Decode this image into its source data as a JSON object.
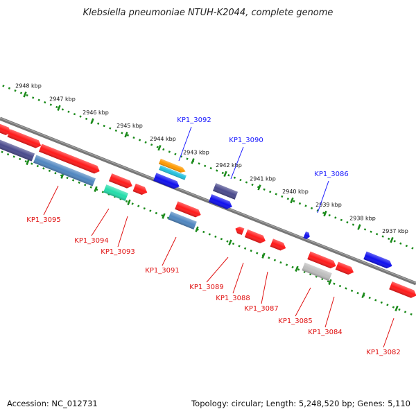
{
  "title": "Klebsiella pneumoniae NTUH-K2044, complete genome",
  "accession": "Accession: NC_012731",
  "summary": "Topology: circular; Length: 5,248,520 bp; Genes: 5,110",
  "scale_labels": [
    "2948 kbp",
    "2947 kbp",
    "2946 kbp",
    "2945 kbp",
    "2944 kbp",
    "2943 kbp",
    "2942 kbp",
    "2941 kbp",
    "2940 kbp",
    "2939 kbp",
    "2938 kbp",
    "2937 kbp"
  ],
  "gene_labels_top": [
    "KP1_3092",
    "KP1_3090",
    "KP1_3086"
  ],
  "gene_labels_bottom": [
    "KP1_3095",
    "KP1_3094",
    "KP1_3093",
    "KP1_3091",
    "KP1_3089",
    "KP1_3088",
    "KP1_3087",
    "KP1_3085",
    "KP1_3084",
    "KP1_3082"
  ],
  "colors": {
    "backbone": "#777777",
    "scale_ticks": "#1a8a1a",
    "label_top": "#1a1aff",
    "label_bottom": "#e01010",
    "gene_red": "#ff1a1a",
    "gene_blue": "#1010ee",
    "gene_steel": "#4f86c0",
    "gene_slate": "#4a4a8c",
    "gene_green": "#22ddaa",
    "gene_orange": "#ff9900",
    "gene_cyan": "#22c0dd",
    "gene_grey": "#bdbdbd"
  }
}
